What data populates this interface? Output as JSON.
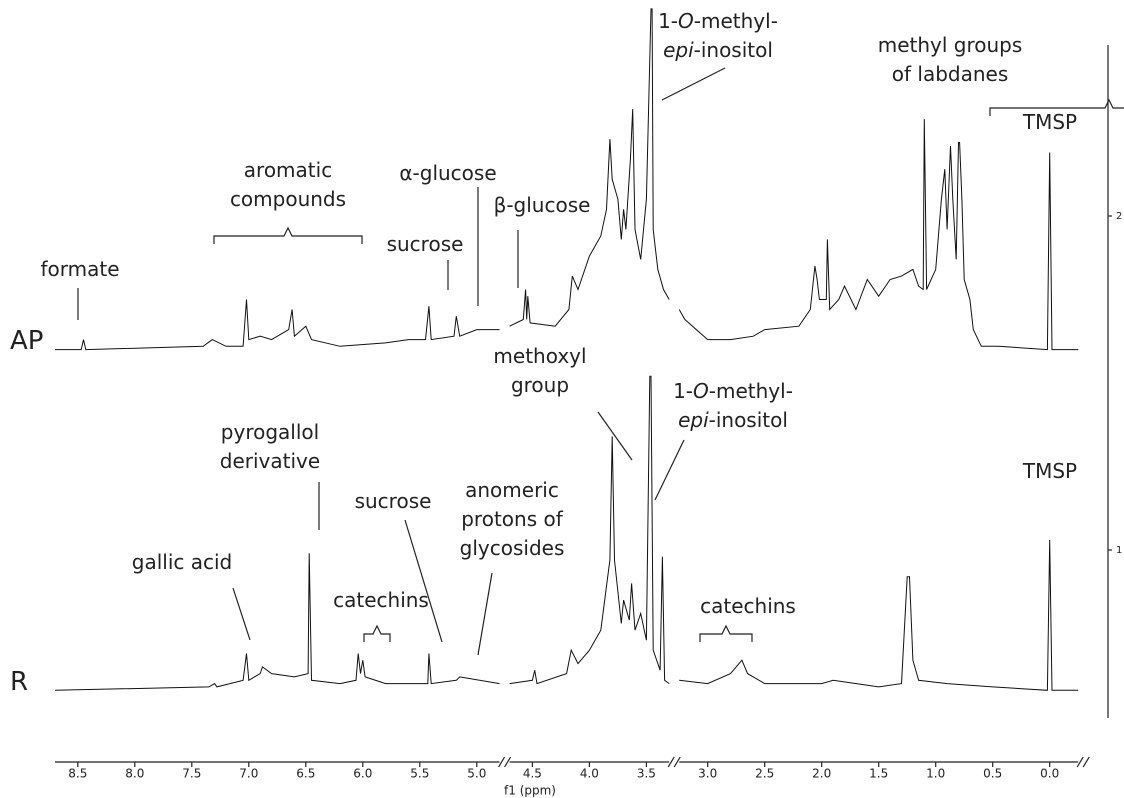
{
  "chart_data": {
    "type": "nmr",
    "x_label": "f1 (ppm)",
    "x_segments": [
      [
        8.7,
        4.8
      ],
      [
        4.7,
        3.3
      ],
      [
        3.25,
        -0.25
      ]
    ],
    "xticks": [
      8.5,
      {
        "value": 8,
        "label": "8.0"
      },
      7.5,
      {
        "value": 7,
        "label": "7.0"
      },
      6.5,
      {
        "value": 6,
        "label": "6.0"
      },
      5.5,
      {
        "value": 5,
        "label": "5.0"
      },
      4.5,
      {
        "value": 4,
        "label": "4.0"
      },
      3.5,
      {
        "value": 3,
        "label": "3.0"
      },
      2.5,
      {
        "value": 2,
        "label": "2.0"
      },
      1.5,
      {
        "value": 1,
        "label": "1.0"
      },
      0.5,
      {
        "value": 0,
        "label": "0.0"
      }
    ],
    "ylim": [
      0.5,
      2.5
    ],
    "yticks": [
      1,
      2
    ],
    "series": [
      {
        "name": "AP",
        "color": "#111111",
        "x": [
          8.7,
          8.47,
          8.45,
          8.43,
          7.4,
          7.32,
          7.2,
          7.05,
          7.02,
          7.0,
          6.9,
          6.8,
          6.65,
          6.62,
          6.6,
          6.5,
          6.45,
          6.2,
          5.8,
          5.6,
          5.45,
          5.42,
          5.4,
          5.2,
          5.18,
          5.15,
          5.0,
          4.8,
          4.7,
          4.58,
          4.56,
          4.55,
          4.54,
          4.52,
          4.3,
          4.18,
          4.15,
          4.1,
          4.0,
          3.9,
          3.85,
          3.82,
          3.8,
          3.75,
          3.72,
          3.7,
          3.68,
          3.64,
          3.62,
          3.6,
          3.55,
          3.5,
          3.46,
          3.45,
          3.44,
          3.4,
          3.35,
          3.3,
          3.25,
          3.2,
          3.0,
          2.8,
          2.6,
          2.5,
          2.2,
          2.1,
          2.06,
          2.04,
          2.02,
          1.96,
          1.95,
          1.93,
          1.85,
          1.8,
          1.7,
          1.6,
          1.5,
          1.4,
          1.3,
          1.2,
          1.15,
          1.11,
          1.1,
          1.08,
          1.0,
          0.95,
          0.92,
          0.9,
          0.87,
          0.85,
          0.82,
          0.8,
          0.79,
          0.77,
          0.75,
          0.7,
          0.67,
          0.6,
          0.45,
          0.02,
          0.0,
          -0.02,
          -0.25
        ],
        "values": [
          1.6,
          1.6,
          1.63,
          1.6,
          1.61,
          1.63,
          1.61,
          1.61,
          1.75,
          1.63,
          1.64,
          1.63,
          1.66,
          1.72,
          1.64,
          1.67,
          1.63,
          1.61,
          1.62,
          1.63,
          1.63,
          1.73,
          1.63,
          1.64,
          1.7,
          1.64,
          1.66,
          1.66,
          1.67,
          1.69,
          1.78,
          1.69,
          1.76,
          1.68,
          1.67,
          1.72,
          1.82,
          1.78,
          1.88,
          1.94,
          2.02,
          2.23,
          2.11,
          2.05,
          1.93,
          2.02,
          1.96,
          2.17,
          2.32,
          1.96,
          1.87,
          2.05,
          2.62,
          2.62,
          1.96,
          1.84,
          1.78,
          1.75,
          1.72,
          1.69,
          1.63,
          1.63,
          1.64,
          1.66,
          1.67,
          1.72,
          1.85,
          1.81,
          1.75,
          1.75,
          1.93,
          1.72,
          1.75,
          1.79,
          1.72,
          1.81,
          1.76,
          1.81,
          1.82,
          1.84,
          1.79,
          1.78,
          2.29,
          1.78,
          1.84,
          2.05,
          2.14,
          1.96,
          2.21,
          2.05,
          1.87,
          2.22,
          2.22,
          2.05,
          1.81,
          1.75,
          1.66,
          1.61,
          1.61,
          1.6,
          2.19,
          1.6,
          1.6
        ]
      },
      {
        "name": "R",
        "color": "#111111",
        "x": [
          8.7,
          7.35,
          7.3,
          7.28,
          7.05,
          7.02,
          7.0,
          6.9,
          6.88,
          6.8,
          6.6,
          6.48,
          6.47,
          6.45,
          6.2,
          6.06,
          6.04,
          6.02,
          6.0,
          5.98,
          5.8,
          5.43,
          5.42,
          5.4,
          5.18,
          5.15,
          4.8,
          4.7,
          4.5,
          4.48,
          4.46,
          4.2,
          4.16,
          4.1,
          4.0,
          3.9,
          3.82,
          3.8,
          3.78,
          3.72,
          3.7,
          3.65,
          3.63,
          3.6,
          3.55,
          3.5,
          3.47,
          3.46,
          3.44,
          3.38,
          3.36,
          3.34,
          3.3,
          3.25,
          3.0,
          2.8,
          2.7,
          2.65,
          2.5,
          2.0,
          1.9,
          1.5,
          1.3,
          1.25,
          1.23,
          1.2,
          1.15,
          0.9,
          0.5,
          0.02,
          0.0,
          -0.02,
          -0.25
        ],
        "values": [
          0.58,
          0.59,
          0.6,
          0.59,
          0.61,
          0.69,
          0.61,
          0.63,
          0.65,
          0.63,
          0.62,
          0.63,
          0.99,
          0.61,
          0.6,
          0.61,
          0.69,
          0.63,
          0.67,
          0.62,
          0.6,
          0.6,
          0.69,
          0.6,
          0.61,
          0.62,
          0.6,
          0.6,
          0.61,
          0.64,
          0.6,
          0.63,
          0.7,
          0.66,
          0.7,
          0.76,
          0.97,
          1.34,
          0.97,
          0.78,
          0.85,
          0.79,
          0.9,
          0.76,
          0.81,
          0.73,
          1.52,
          1.52,
          0.7,
          0.64,
          0.98,
          0.61,
          0.6,
          0.61,
          0.6,
          0.63,
          0.67,
          0.63,
          0.6,
          0.6,
          0.61,
          0.59,
          0.6,
          0.92,
          0.92,
          0.67,
          0.61,
          0.6,
          0.59,
          0.58,
          1.03,
          0.58,
          0.58
        ]
      }
    ],
    "annotations": [
      {
        "lines": [
          [
            {
              "text": "formate"
            }
          ]
        ]
      },
      {
        "lines": [
          [
            {
              "text": "aromatic"
            }
          ],
          [
            {
              "text": "compounds"
            }
          ]
        ]
      },
      {
        "lines": [
          [
            {
              "text": "α-glucose"
            }
          ]
        ]
      },
      {
        "lines": [
          [
            {
              "text": "sucrose"
            }
          ]
        ]
      },
      {
        "lines": [
          [
            {
              "text": "β-glucose"
            }
          ]
        ]
      },
      {
        "lines": [
          [
            {
              "text": "1-"
            },
            {
              "text": "O",
              "italic": true
            },
            {
              "text": "-methyl-"
            }
          ],
          [
            {
              "text": "epi",
              "italic": true
            },
            {
              "text": "-inositol"
            }
          ]
        ]
      },
      {
        "lines": [
          [
            {
              "text": "methyl groups"
            }
          ],
          [
            {
              "text": "of labdanes"
            }
          ]
        ]
      },
      {
        "lines": [
          [
            {
              "text": "TMSP"
            }
          ]
        ]
      },
      {
        "lines": [
          [
            {
              "text": "methoxyl"
            }
          ],
          [
            {
              "text": "group"
            }
          ]
        ]
      },
      {
        "lines": [
          [
            {
              "text": "1-"
            },
            {
              "text": "O",
              "italic": true
            },
            {
              "text": "-methyl-"
            }
          ],
          [
            {
              "text": "epi",
              "italic": true
            },
            {
              "text": "-inositol"
            }
          ]
        ]
      },
      {
        "lines": [
          [
            {
              "text": "pyrogallol"
            }
          ],
          [
            {
              "text": "derivative"
            }
          ]
        ]
      },
      {
        "lines": [
          [
            {
              "text": "gallic acid"
            }
          ]
        ]
      },
      {
        "lines": [
          [
            {
              "text": "sucrose"
            }
          ]
        ]
      },
      {
        "lines": [
          [
            {
              "text": "anomeric"
            }
          ],
          [
            {
              "text": "protons of"
            }
          ],
          [
            {
              "text": "glycosides"
            }
          ]
        ]
      },
      {
        "lines": [
          [
            {
              "text": "catechins"
            }
          ]
        ]
      },
      {
        "lines": [
          [
            {
              "text": "catechins"
            }
          ]
        ]
      },
      {
        "lines": [
          [
            {
              "text": "TMSP"
            }
          ]
        ]
      }
    ]
  }
}
